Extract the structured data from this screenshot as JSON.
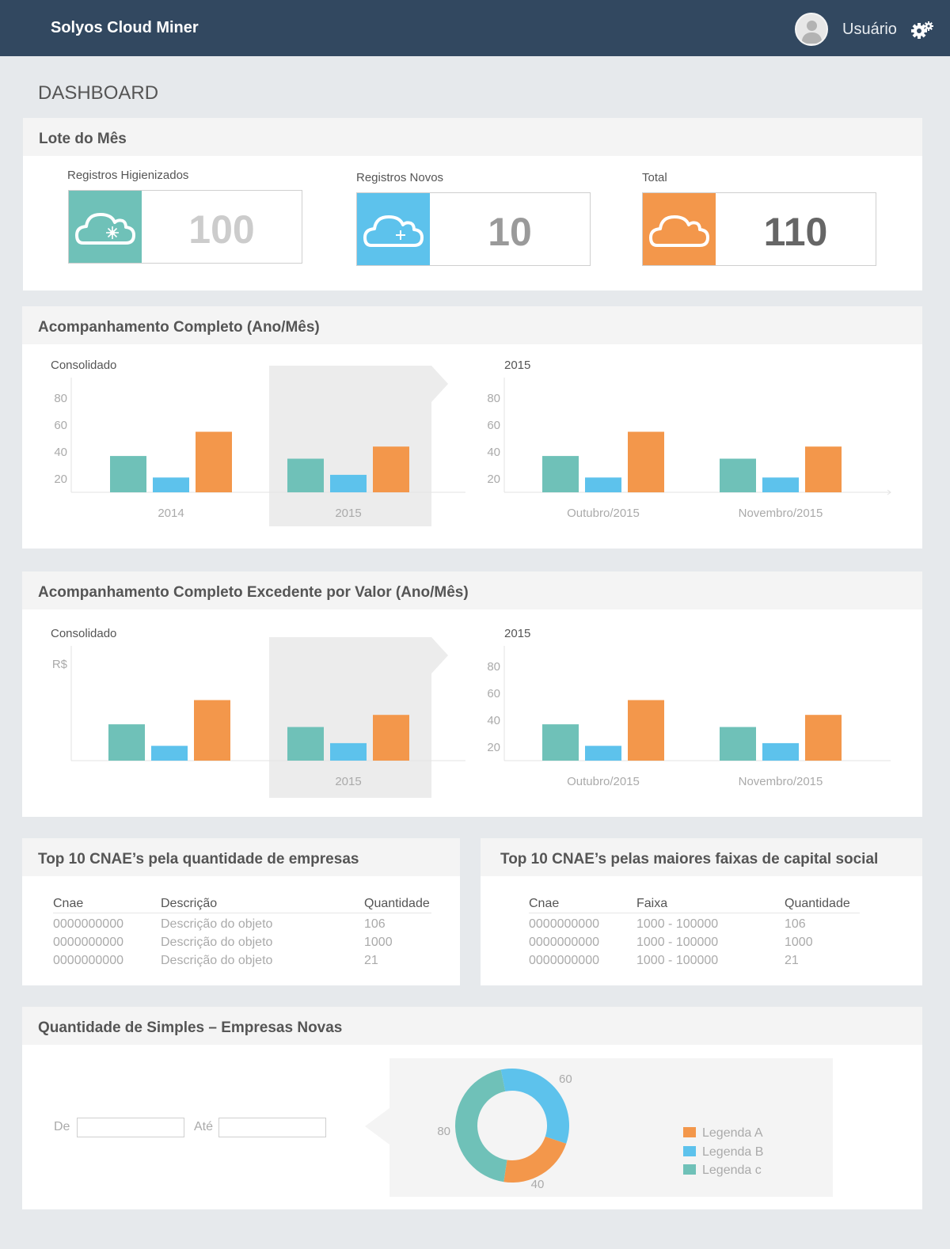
{
  "app": {
    "title": "Solyos Cloud Miner",
    "user": "Usuário",
    "page_title": "DASHBOARD"
  },
  "colors": {
    "header_bg": "#324860",
    "teal": "#6fc1b8",
    "blue": "#5dc2ec",
    "orange": "#f3974b"
  },
  "lote": {
    "title": "Lote do Mês",
    "stats": [
      {
        "label": "Registros Higienizados",
        "value": "100",
        "icon": "cloud-sparkle-icon"
      },
      {
        "label": "Registros Novos",
        "value": "10",
        "icon": "cloud-plus-icon"
      },
      {
        "label": "Total",
        "value": "110",
        "icon": "cloud-icon"
      }
    ]
  },
  "acompanhamento": {
    "title": "Acompanhamento Completo (Ano/Mês)"
  },
  "excedente": {
    "title": "Acompanhamento Completo Excedente por Valor (Ano/Mês)"
  },
  "chart_data": [
    {
      "type": "bar",
      "title": "Consolidado",
      "categories": [
        "2014",
        "2015"
      ],
      "selected": "2015",
      "y_ticks": [
        20,
        40,
        60,
        80
      ],
      "series": [
        {
          "color": "#6fc1b8",
          "values": [
            37,
            35
          ]
        },
        {
          "color": "#5dc2ec",
          "values": [
            21,
            23
          ]
        },
        {
          "color": "#f3974b",
          "values": [
            55,
            44
          ]
        }
      ]
    },
    {
      "type": "bar",
      "title": "2015",
      "categories": [
        "Outubro/2015",
        "Novembro/2015"
      ],
      "y_ticks": [
        20,
        40,
        60,
        80
      ],
      "series": [
        {
          "color": "#6fc1b8",
          "values": [
            37,
            35
          ]
        },
        {
          "color": "#5dc2ec",
          "values": [
            21,
            21
          ]
        },
        {
          "color": "#f3974b",
          "values": [
            55,
            44
          ]
        }
      ]
    },
    {
      "type": "bar",
      "title": "Consolidado",
      "ylabel": "R$",
      "categories": [
        "",
        "2015"
      ],
      "selected": "2015",
      "series": [
        {
          "color": "#6fc1b8",
          "values": [
            37,
            35
          ]
        },
        {
          "color": "#5dc2ec",
          "values": [
            21,
            23
          ]
        },
        {
          "color": "#f3974b",
          "values": [
            55,
            44
          ]
        }
      ]
    },
    {
      "type": "bar",
      "title": "2015",
      "categories": [
        "Outubro/2015",
        "Novembro/2015"
      ],
      "y_ticks": [
        20,
        40,
        60,
        80
      ],
      "series": [
        {
          "color": "#6fc1b8",
          "values": [
            37,
            35
          ]
        },
        {
          "color": "#5dc2ec",
          "values": [
            21,
            23
          ]
        },
        {
          "color": "#f3974b",
          "values": [
            55,
            44
          ]
        }
      ]
    },
    {
      "type": "pie",
      "variant": "donut",
      "labels": [
        "Legenda A",
        "Legenda B",
        "Legenda c"
      ],
      "values": [
        40,
        60,
        80
      ],
      "colors": [
        "#f3974b",
        "#5dc2ec",
        "#6fc1b8"
      ]
    }
  ],
  "top_qtd": {
    "title": "Top 10 CNAE’s pela quantidade de empresas",
    "headers": [
      "Cnae",
      "Descrição",
      "Quantidade"
    ],
    "rows": [
      [
        "0000000000",
        "Descrição do objeto",
        "106"
      ],
      [
        "0000000000",
        "Descrição do objeto",
        "1000"
      ],
      [
        "0000000000",
        "Descrição do objeto",
        "21"
      ]
    ]
  },
  "top_capital": {
    "title": "Top 10 CNAE’s pelas maiores faixas de capital social",
    "headers": [
      "Cnae",
      "Faixa",
      "Quantidade"
    ],
    "rows": [
      [
        "0000000000",
        "1000 - 100000",
        "106"
      ],
      [
        "0000000000",
        "1000 - 100000",
        "1000"
      ],
      [
        "0000000000",
        "1000 - 100000",
        "21"
      ]
    ]
  },
  "simples": {
    "title": "Quantidade de Simples – Empresas Novas",
    "de_label": "De",
    "ate_label": "Até",
    "de_value": "",
    "ate_value": ""
  }
}
